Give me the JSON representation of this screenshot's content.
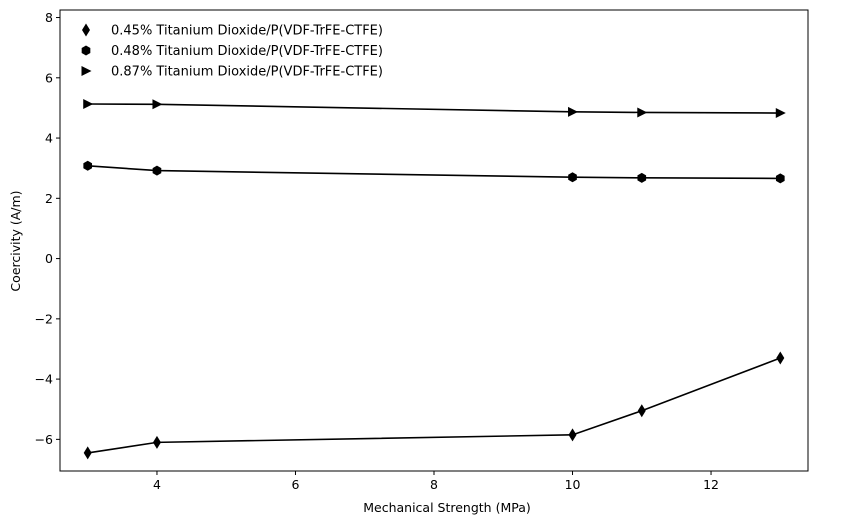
{
  "chart_data": {
    "type": "line",
    "title": "",
    "xlabel": "Mechanical Strength (MPa)",
    "ylabel": "Coercivity (A/m)",
    "xlim": [
      2.6,
      13.4
    ],
    "ylim": [
      -7.05,
      8.25
    ],
    "xticks": [
      4,
      6,
      8,
      10,
      12
    ],
    "yticks": [
      -6,
      -4,
      -2,
      0,
      2,
      4,
      6,
      8
    ],
    "grid": false,
    "legend_position": "top-left",
    "series": [
      {
        "name": "0.45% Titanium Dioxide/P(VDF-TrFE-CTFE)",
        "marker": "diamond",
        "color": "#000000",
        "x": [
          3,
          4,
          10,
          11,
          13
        ],
        "y": [
          -6.45,
          -6.1,
          -5.85,
          -5.05,
          -3.3
        ]
      },
      {
        "name": "0.48% Titanium Dioxide/P(VDF-TrFE-CTFE)",
        "marker": "hexagon",
        "color": "#000000",
        "x": [
          3,
          4,
          10,
          11,
          13
        ],
        "y": [
          3.08,
          2.92,
          2.7,
          2.68,
          2.66
        ]
      },
      {
        "name": "0.87% Titanium Dioxide/P(VDF-TrFE-CTFE)",
        "marker": "triangle-right",
        "color": "#000000",
        "x": [
          3,
          4,
          10,
          11,
          13
        ],
        "y": [
          5.13,
          5.12,
          4.87,
          4.85,
          4.83
        ]
      }
    ]
  }
}
